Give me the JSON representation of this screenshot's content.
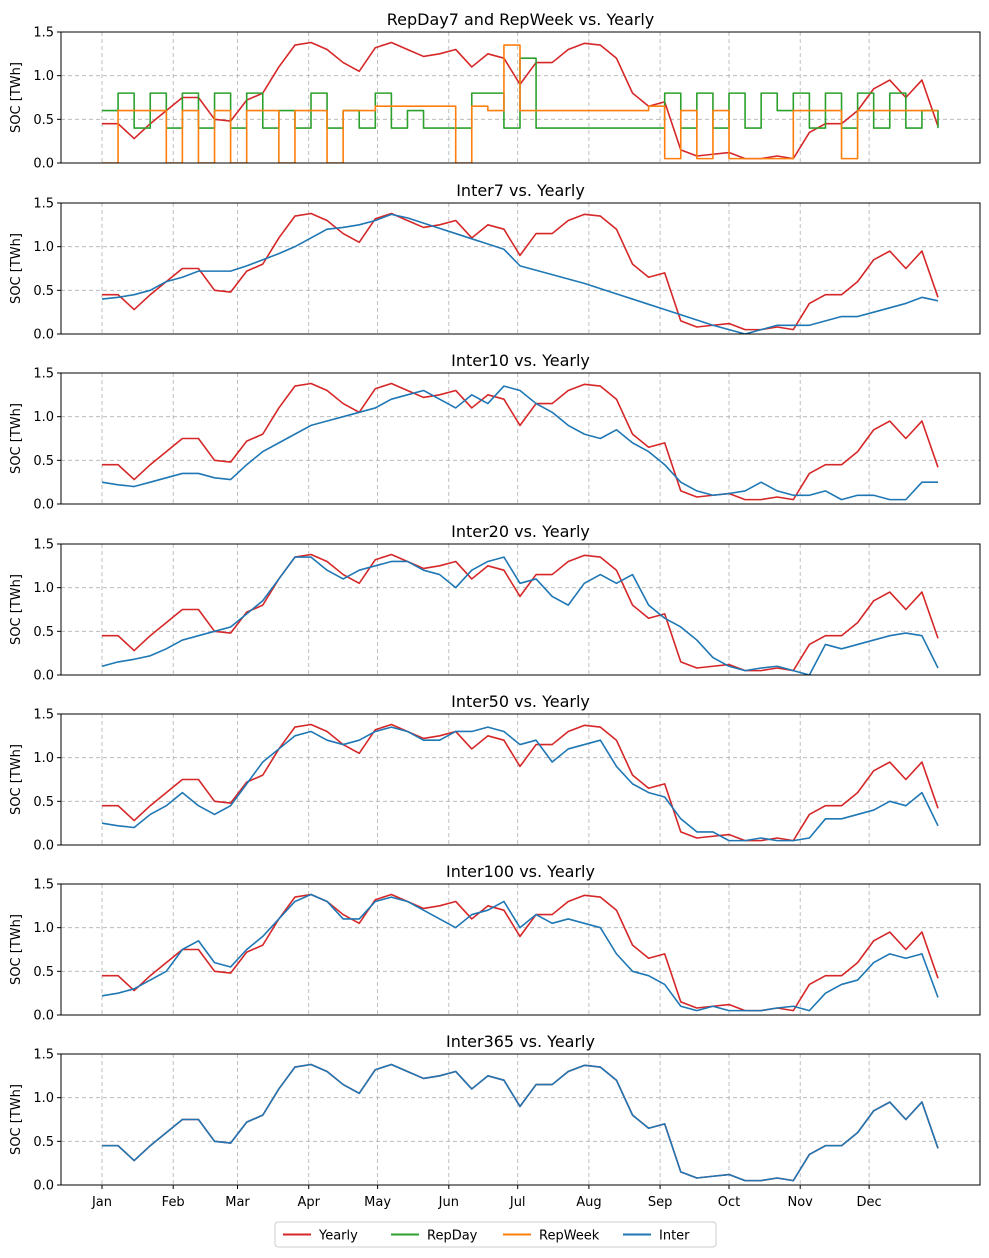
{
  "chart_data": {
    "type": "line",
    "ylabel": "SOC [TWh]",
    "ylim": [
      0,
      1.5
    ],
    "yticks": [
      "0.0",
      "0.5",
      "1.0",
      "1.5"
    ],
    "xticks": [
      "Jan",
      "Feb",
      "Mar",
      "Apr",
      "May",
      "Jun",
      "Jul",
      "Aug",
      "Sep",
      "Oct",
      "Nov",
      "Dec"
    ],
    "xtick_days": [
      0,
      31,
      59,
      90,
      120,
      151,
      181,
      212,
      243,
      273,
      304,
      334
    ],
    "grid": true,
    "legend": {
      "placement": "bottom-center",
      "entries": [
        {
          "name": "Yearly",
          "color": "#d62728"
        },
        {
          "name": "RepDay",
          "color": "#2ca02c"
        },
        {
          "name": "RepWeek",
          "color": "#ff7f0e"
        },
        {
          "name": "Inter",
          "color": "#1f77b4"
        }
      ]
    },
    "x_days": [
      0,
      7,
      14,
      21,
      28,
      35,
      42,
      49,
      56,
      63,
      70,
      77,
      84,
      91,
      98,
      105,
      112,
      119,
      126,
      133,
      140,
      147,
      154,
      161,
      168,
      175,
      182,
      189,
      196,
      203,
      210,
      217,
      224,
      231,
      238,
      245,
      252,
      259,
      266,
      273,
      280,
      287,
      294,
      301,
      308,
      315,
      322,
      329,
      336,
      343,
      350,
      357,
      364
    ],
    "yearly": [
      0.45,
      0.45,
      0.28,
      0.45,
      0.6,
      0.75,
      0.75,
      0.5,
      0.48,
      0.72,
      0.8,
      1.1,
      1.35,
      1.38,
      1.3,
      1.15,
      1.05,
      1.32,
      1.38,
      1.3,
      1.22,
      1.25,
      1.3,
      1.1,
      1.25,
      1.2,
      0.9,
      1.15,
      1.15,
      1.3,
      1.37,
      1.35,
      1.2,
      0.8,
      0.65,
      0.7,
      0.15,
      0.08,
      0.1,
      0.12,
      0.05,
      0.05,
      0.08,
      0.05,
      0.35,
      0.45,
      0.45,
      0.6,
      0.85,
      0.95,
      0.75,
      0.95,
      0.42
    ],
    "panels": [
      {
        "title": "RepDay7 and RepWeek vs. Yearly",
        "series": [
          {
            "name": "RepDay",
            "color": "#2ca02c",
            "step": true,
            "values": [
              0.6,
              0.8,
              0.4,
              0.8,
              0.4,
              0.8,
              0.4,
              0.8,
              0.4,
              0.8,
              0.4,
              0.6,
              0.4,
              0.8,
              0.4,
              0.6,
              0.4,
              0.8,
              0.4,
              0.6,
              0.4,
              0.4,
              0.4,
              0.8,
              0.8,
              0.4,
              1.2,
              0.4,
              0.4,
              0.4,
              0.4,
              0.4,
              0.4,
              0.4,
              0.4,
              0.8,
              0.4,
              0.8,
              0.4,
              0.8,
              0.4,
              0.8,
              0.6,
              0.8,
              0.4,
              0.8,
              0.4,
              0.8,
              0.4,
              0.8,
              0.4,
              0.6,
              0.4
            ]
          },
          {
            "name": "RepWeek",
            "color": "#ff7f0e",
            "step": true,
            "values": [
              0,
              0.6,
              0.6,
              0.6,
              0,
              0.6,
              0,
              0.6,
              0,
              0.6,
              0.6,
              0,
              0.6,
              0.6,
              0,
              0.6,
              0.6,
              0.65,
              0.65,
              0.65,
              0.65,
              0.65,
              0,
              0.65,
              0.6,
              1.35,
              0.6,
              0.6,
              0.6,
              0.6,
              0.6,
              0.6,
              0.6,
              0.6,
              0.65,
              0.05,
              0.6,
              0.05,
              0.6,
              0.05,
              0.05,
              0.05,
              0.05,
              0.6,
              0.6,
              0.6,
              0.05,
              0.6,
              0.6,
              0.6,
              0.6,
              0.6,
              0.6
            ]
          }
        ]
      },
      {
        "title": "Inter7 vs. Yearly",
        "series": [
          {
            "name": "Inter",
            "color": "#1f77b4",
            "values": [
              0.4,
              0.42,
              0.45,
              0.5,
              0.6,
              0.65,
              0.72,
              0.72,
              0.72,
              0.78,
              0.85,
              0.92,
              1.0,
              1.1,
              1.2,
              1.22,
              1.25,
              1.3,
              1.37,
              1.33,
              1.27,
              1.21,
              1.15,
              1.09,
              1.03,
              0.97,
              0.78,
              0.73,
              0.68,
              0.63,
              0.58,
              0.52,
              0.46,
              0.4,
              0.34,
              0.28,
              0.22,
              0.16,
              0.1,
              0.05,
              0.0,
              0.05,
              0.1,
              0.1,
              0.1,
              0.15,
              0.2,
              0.2,
              0.25,
              0.3,
              0.35,
              0.42,
              0.38
            ]
          }
        ]
      },
      {
        "title": "Inter10 vs. Yearly",
        "series": [
          {
            "name": "Inter",
            "color": "#1f77b4",
            "values": [
              0.25,
              0.22,
              0.2,
              0.25,
              0.3,
              0.35,
              0.35,
              0.3,
              0.28,
              0.45,
              0.6,
              0.7,
              0.8,
              0.9,
              0.95,
              1.0,
              1.05,
              1.1,
              1.2,
              1.25,
              1.3,
              1.2,
              1.1,
              1.25,
              1.15,
              1.35,
              1.3,
              1.15,
              1.05,
              0.9,
              0.8,
              0.75,
              0.85,
              0.7,
              0.6,
              0.45,
              0.25,
              0.15,
              0.1,
              0.12,
              0.15,
              0.25,
              0.15,
              0.1,
              0.1,
              0.15,
              0.05,
              0.1,
              0.1,
              0.05,
              0.05,
              0.25,
              0.25
            ]
          }
        ]
      },
      {
        "title": "Inter20 vs. Yearly",
        "series": [
          {
            "name": "Inter",
            "color": "#1f77b4",
            "values": [
              0.1,
              0.15,
              0.18,
              0.22,
              0.3,
              0.4,
              0.45,
              0.5,
              0.55,
              0.7,
              0.85,
              1.1,
              1.35,
              1.35,
              1.2,
              1.1,
              1.2,
              1.25,
              1.3,
              1.3,
              1.2,
              1.15,
              1.0,
              1.2,
              1.3,
              1.35,
              1.05,
              1.1,
              0.9,
              0.8,
              1.05,
              1.15,
              1.05,
              1.15,
              0.8,
              0.65,
              0.55,
              0.4,
              0.2,
              0.1,
              0.05,
              0.08,
              0.1,
              0.05,
              0.0,
              0.35,
              0.3,
              0.35,
              0.4,
              0.45,
              0.48,
              0.45,
              0.08
            ]
          }
        ]
      },
      {
        "title": "Inter50 vs. Yearly",
        "series": [
          {
            "name": "Inter",
            "color": "#1f77b4",
            "values": [
              0.25,
              0.22,
              0.2,
              0.35,
              0.45,
              0.6,
              0.45,
              0.35,
              0.45,
              0.7,
              0.95,
              1.1,
              1.25,
              1.3,
              1.2,
              1.15,
              1.2,
              1.3,
              1.35,
              1.3,
              1.2,
              1.2,
              1.3,
              1.3,
              1.35,
              1.3,
              1.15,
              1.2,
              0.95,
              1.1,
              1.15,
              1.2,
              0.9,
              0.7,
              0.6,
              0.55,
              0.3,
              0.15,
              0.15,
              0.05,
              0.05,
              0.08,
              0.05,
              0.05,
              0.08,
              0.3,
              0.3,
              0.35,
              0.4,
              0.5,
              0.45,
              0.6,
              0.22
            ]
          }
        ]
      },
      {
        "title": "Inter100 vs. Yearly",
        "series": [
          {
            "name": "Inter",
            "color": "#1f77b4",
            "values": [
              0.22,
              0.25,
              0.3,
              0.4,
              0.5,
              0.75,
              0.85,
              0.6,
              0.55,
              0.75,
              0.9,
              1.1,
              1.3,
              1.38,
              1.3,
              1.1,
              1.1,
              1.3,
              1.35,
              1.3,
              1.2,
              1.1,
              1.0,
              1.15,
              1.2,
              1.3,
              1.0,
              1.15,
              1.05,
              1.1,
              1.05,
              1.0,
              0.7,
              0.5,
              0.45,
              0.35,
              0.1,
              0.05,
              0.1,
              0.05,
              0.05,
              0.05,
              0.08,
              0.1,
              0.05,
              0.25,
              0.35,
              0.4,
              0.6,
              0.7,
              0.65,
              0.7,
              0.2
            ]
          }
        ]
      },
      {
        "title": "Inter365 vs. Yearly",
        "series": [
          {
            "name": "Inter",
            "color": "#1f77b4",
            "values": [
              0.45,
              0.45,
              0.28,
              0.45,
              0.6,
              0.75,
              0.75,
              0.5,
              0.48,
              0.72,
              0.8,
              1.1,
              1.35,
              1.38,
              1.3,
              1.15,
              1.05,
              1.32,
              1.38,
              1.3,
              1.22,
              1.25,
              1.3,
              1.1,
              1.25,
              1.2,
              0.9,
              1.15,
              1.15,
              1.3,
              1.37,
              1.35,
              1.2,
              0.8,
              0.65,
              0.7,
              0.15,
              0.08,
              0.1,
              0.12,
              0.05,
              0.05,
              0.08,
              0.05,
              0.35,
              0.45,
              0.45,
              0.6,
              0.85,
              0.95,
              0.75,
              0.95,
              0.42
            ]
          }
        ]
      }
    ]
  }
}
